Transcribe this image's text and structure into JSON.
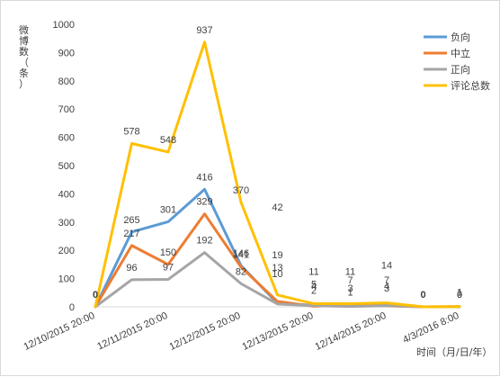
{
  "chart_data": {
    "type": "line",
    "title": "",
    "xlabel": "时间（月/日/年）",
    "ylabel": "微博数（条）",
    "ylim": [
      0,
      1000
    ],
    "yticks": [
      0,
      100,
      200,
      300,
      400,
      500,
      600,
      700,
      800,
      900,
      1000
    ],
    "x": [
      "12/10/2015 20:00",
      "",
      "12/11/2015 20:00",
      "",
      "12/12/2015 20:00",
      "",
      "12/13/2015 20:00",
      "",
      "12/14/2015 20:00",
      "",
      "4/3/2016 8:00"
    ],
    "x_tick_labels": [
      "12/10/2015 20:00",
      "12/11/2015 20:00",
      "12/12/2015 20:00",
      "12/13/2015 20:00",
      "12/14/2015 20:00",
      "4/3/2016 8:00"
    ],
    "grid": false,
    "legend_position": "top-right",
    "series": [
      {
        "name": "负向",
        "color": "#5b9bd5",
        "values": [
          0,
          265,
          301,
          416,
          146,
          13,
          5,
          3,
          7,
          0,
          0
        ]
      },
      {
        "name": "中立",
        "color": "#ed7d31",
        "values": [
          0,
          217,
          150,
          329,
          141,
          19,
          2,
          7,
          3,
          0,
          1
        ]
      },
      {
        "name": "正向",
        "color": "#a5a5a5",
        "values": [
          0,
          96,
          97,
          192,
          82,
          10,
          4,
          1,
          4,
          0,
          0
        ]
      },
      {
        "name": "评论总数",
        "color": "#ffc000",
        "values": [
          0,
          578,
          548,
          937,
          370,
          42,
          11,
          11,
          14,
          0,
          1
        ]
      }
    ],
    "data_labels": [
      {
        "text": "0",
        "i": 0,
        "y": 0,
        "bold": true
      },
      {
        "text": "578",
        "i": 1,
        "y": 578
      },
      {
        "text": "265",
        "i": 1,
        "y": 265
      },
      {
        "text": "217",
        "i": 1,
        "y": 217
      },
      {
        "text": "96",
        "i": 1,
        "y": 96
      },
      {
        "text": "548",
        "i": 2,
        "y": 548
      },
      {
        "text": "301",
        "i": 2,
        "y": 301
      },
      {
        "text": "150",
        "i": 2,
        "y": 150
      },
      {
        "text": "97",
        "i": 2,
        "y": 97
      },
      {
        "text": "937",
        "i": 3,
        "y": 937
      },
      {
        "text": "416",
        "i": 3,
        "y": 416
      },
      {
        "text": "329",
        "i": 3,
        "y": 329
      },
      {
        "text": "192",
        "i": 3,
        "y": 192
      },
      {
        "text": "370",
        "i": 4,
        "y": 370
      },
      {
        "text": "146",
        "i": 4,
        "y": 146
      },
      {
        "text": "141",
        "i": 4,
        "y": 141
      },
      {
        "text": "82",
        "i": 4,
        "y": 82
      },
      {
        "text": "42",
        "i": 5,
        "y": 42
      },
      {
        "text": "19",
        "i": 5,
        "y": 19
      },
      {
        "text": "13",
        "i": 5,
        "y": 13
      },
      {
        "text": "10",
        "i": 5,
        "y": 10
      },
      {
        "text": "11",
        "i": 6,
        "y": 11
      },
      {
        "text": "5",
        "i": 6,
        "y": 5
      },
      {
        "text": "2",
        "i": 6,
        "y": 2
      },
      {
        "text": "4",
        "i": 6,
        "y": 4
      },
      {
        "text": "11",
        "i": 7,
        "y": 11
      },
      {
        "text": "3",
        "i": 7,
        "y": 3
      },
      {
        "text": "7",
        "i": 7,
        "y": 7
      },
      {
        "text": "1",
        "i": 7,
        "y": 1
      },
      {
        "text": "14",
        "i": 8,
        "y": 14
      },
      {
        "text": "7",
        "i": 8,
        "y": 7
      },
      {
        "text": "3",
        "i": 8,
        "y": 3
      },
      {
        "text": "4",
        "i": 8,
        "y": 4
      },
      {
        "text": "0",
        "i": 9,
        "y": 0,
        "bold": true
      },
      {
        "text": "1",
        "i": 10,
        "y": 1
      },
      {
        "text": "0",
        "i": 10,
        "y": 0
      },
      {
        "text": "1",
        "i": 10,
        "y": 1
      },
      {
        "text": "0",
        "i": 10,
        "y": 0
      }
    ]
  }
}
